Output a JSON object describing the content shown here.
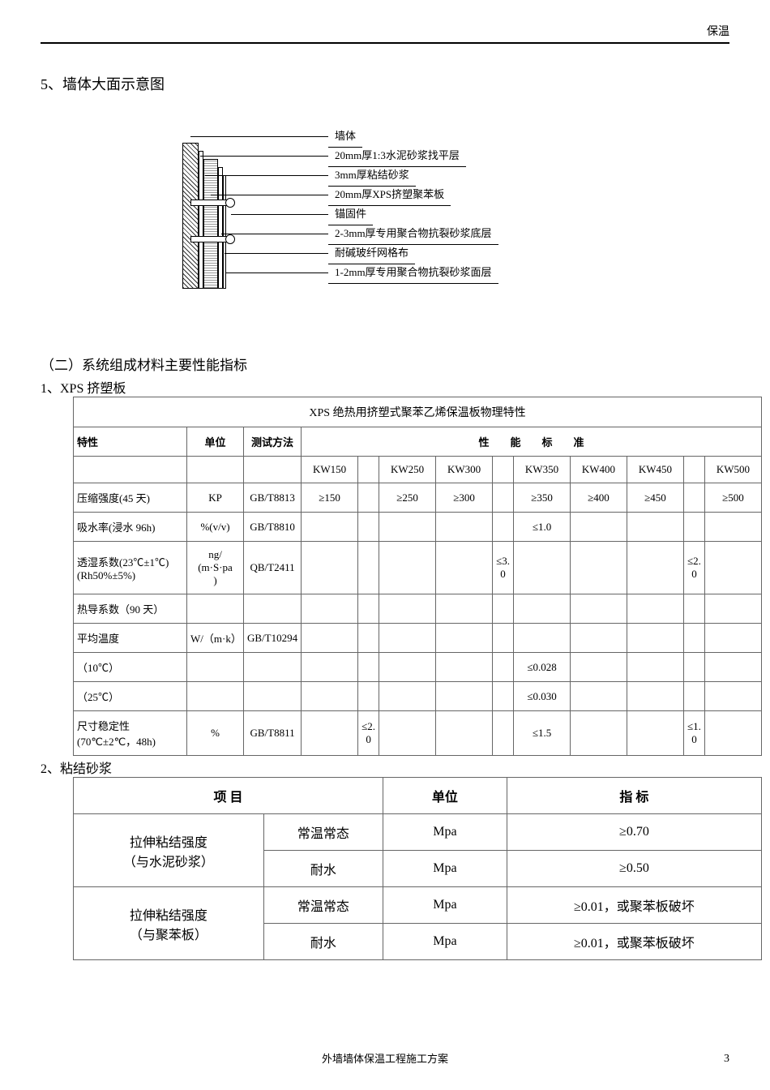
{
  "header": {
    "right_text": "保温"
  },
  "section5": {
    "title": "5、墙体大面示意图"
  },
  "diagram": {
    "labels": [
      "墙体",
      "20mm厚1:3水泥砂浆找平层",
      "3mm厚粘结砂浆",
      "20mm厚XPS挤塑聚苯板",
      "锚固件",
      "2-3mm厚专用聚合物抗裂砂浆底层",
      "耐碱玻纤网格布",
      "1-2mm厚专用聚合物抗裂砂浆面层"
    ]
  },
  "section2h": {
    "heading": "（二）系统组成材料主要性能指标",
    "item1": "1、XPS 挤塑板",
    "item2": "2、粘结砂浆"
  },
  "xps_table": {
    "caption": "XPS 绝热用挤塑式聚苯乙烯保温板物理特性",
    "header": {
      "c1": "特性",
      "c2": "单位",
      "c3": "测试方法",
      "c4": "性　　能　　标　　准"
    },
    "grade_cols": [
      "KW150",
      "",
      "KW250",
      "KW300",
      "",
      "KW350",
      "KW400",
      "KW450",
      "",
      "KW500"
    ],
    "rows": [
      {
        "name": "压缩强度(45 天)",
        "unit": "KP",
        "method": "GB/T8813",
        "v": [
          "≥150",
          "",
          "≥250",
          "≥300",
          "",
          "≥350",
          "≥400",
          "≥450",
          "",
          "≥500"
        ]
      },
      {
        "name": "吸水率(浸水 96h)",
        "unit": "%(v/v)",
        "method": "GB/T8810",
        "v": [
          "",
          "",
          "",
          "",
          "",
          "≤1.0",
          "",
          "",
          "",
          ""
        ]
      },
      {
        "name": "透湿系数(23℃±1℃)\n(Rh50%±5%)",
        "unit": "ng/\n(m·S·pa\n)",
        "method": "QB/T2411",
        "v": [
          "",
          "",
          "",
          "",
          "≤3.\n0",
          "",
          "",
          "",
          "≤2.\n0",
          ""
        ]
      },
      {
        "name": "热导系数（90 天）",
        "unit": "",
        "method": "",
        "v": [
          "",
          "",
          "",
          "",
          "",
          "",
          "",
          "",
          "",
          ""
        ]
      },
      {
        "name": "平均温度",
        "unit": "W/（m·k）",
        "method": "GB/T10294",
        "v": [
          "",
          "",
          "",
          "",
          "",
          "",
          "",
          "",
          "",
          ""
        ]
      },
      {
        "name": "（10℃）",
        "unit": "",
        "method": "",
        "v": [
          "",
          "",
          "",
          "",
          "",
          "≤0.028",
          "",
          "",
          "",
          ""
        ]
      },
      {
        "name": "（25℃）",
        "unit": "",
        "method": "",
        "v": [
          "",
          "",
          "",
          "",
          "",
          "≤0.030",
          "",
          "",
          "",
          ""
        ]
      },
      {
        "name": "尺寸稳定性\n(70℃±2℃，48h)",
        "unit": "%",
        "method": "GB/T8811",
        "v": [
          "",
          "≤2.\n0",
          "",
          "",
          "",
          "≤1.5",
          "",
          "",
          "≤1.\n0",
          ""
        ]
      }
    ]
  },
  "mortar_table": {
    "header": {
      "c1": "项 目",
      "c2": "单位",
      "c3": "指 标"
    },
    "rows": [
      {
        "group": "拉伸粘结强度\n（与水泥砂浆）",
        "cond": "常温常态",
        "unit": "Mpa",
        "val": "≥0.70"
      },
      {
        "cond": "耐水",
        "unit": "Mpa",
        "val": "≥0.50"
      },
      {
        "group": "拉伸粘结强度\n（与聚苯板）",
        "cond": "常温常态",
        "unit": "Mpa",
        "val": "≥0.01，或聚苯板破坏"
      },
      {
        "cond": "耐水",
        "unit": "Mpa",
        "val": "≥0.01，或聚苯板破坏"
      }
    ]
  },
  "footer": {
    "text": "外墙墙体保温工程施工方案",
    "page": "3"
  }
}
